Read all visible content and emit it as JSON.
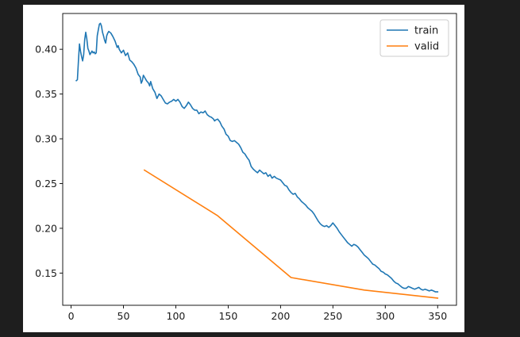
{
  "chart_data": {
    "type": "line",
    "title": "",
    "xlabel": "",
    "ylabel": "",
    "xlim": [
      -8,
      368
    ],
    "ylim": [
      0.114,
      0.44
    ],
    "xticks": [
      0,
      50,
      100,
      150,
      200,
      250,
      300,
      350
    ],
    "xtick_labels": [
      "0",
      "50",
      "100",
      "150",
      "200",
      "250",
      "300",
      "350"
    ],
    "yticks": [
      0.15,
      0.2,
      0.25,
      0.3,
      0.35,
      0.4
    ],
    "ytick_labels": [
      "0.15",
      "0.20",
      "0.25",
      "0.30",
      "0.35",
      "0.40"
    ],
    "grid": false,
    "legend_position": "top-right",
    "series": [
      {
        "name": "train",
        "color": "#1f77b4",
        "points": [
          [
            5,
            0.365
          ],
          [
            6,
            0.366
          ],
          [
            7,
            0.387
          ],
          [
            8,
            0.406
          ],
          [
            9,
            0.398
          ],
          [
            10,
            0.392
          ],
          [
            11,
            0.387
          ],
          [
            12,
            0.394
          ],
          [
            13,
            0.411
          ],
          [
            14,
            0.419
          ],
          [
            15,
            0.412
          ],
          [
            16,
            0.401
          ],
          [
            17,
            0.398
          ],
          [
            18,
            0.394
          ],
          [
            19,
            0.396
          ],
          [
            20,
            0.398
          ],
          [
            21,
            0.396
          ],
          [
            22,
            0.397
          ],
          [
            23,
            0.395
          ],
          [
            24,
            0.396
          ],
          [
            25,
            0.415
          ],
          [
            26,
            0.422
          ],
          [
            27,
            0.428
          ],
          [
            28,
            0.429
          ],
          [
            29,
            0.426
          ],
          [
            30,
            0.419
          ],
          [
            31,
            0.415
          ],
          [
            32,
            0.41
          ],
          [
            33,
            0.407
          ],
          [
            34,
            0.415
          ],
          [
            35,
            0.418
          ],
          [
            36,
            0.42
          ],
          [
            37,
            0.419
          ],
          [
            38,
            0.418
          ],
          [
            40,
            0.414
          ],
          [
            42,
            0.409
          ],
          [
            44,
            0.402
          ],
          [
            45,
            0.404
          ],
          [
            46,
            0.4
          ],
          [
            48,
            0.396
          ],
          [
            50,
            0.399
          ],
          [
            52,
            0.393
          ],
          [
            54,
            0.396
          ],
          [
            56,
            0.388
          ],
          [
            58,
            0.386
          ],
          [
            60,
            0.383
          ],
          [
            62,
            0.379
          ],
          [
            64,
            0.372
          ],
          [
            66,
            0.369
          ],
          [
            67,
            0.362
          ],
          [
            68,
            0.365
          ],
          [
            69,
            0.371
          ],
          [
            70,
            0.369
          ],
          [
            72,
            0.365
          ],
          [
            74,
            0.362
          ],
          [
            75,
            0.359
          ],
          [
            76,
            0.364
          ],
          [
            77,
            0.36
          ],
          [
            78,
            0.356
          ],
          [
            80,
            0.352
          ],
          [
            82,
            0.345
          ],
          [
            84,
            0.35
          ],
          [
            86,
            0.348
          ],
          [
            88,
            0.344
          ],
          [
            90,
            0.34
          ],
          [
            92,
            0.339
          ],
          [
            94,
            0.341
          ],
          [
            96,
            0.342
          ],
          [
            98,
            0.344
          ],
          [
            100,
            0.342
          ],
          [
            102,
            0.344
          ],
          [
            104,
            0.341
          ],
          [
            106,
            0.336
          ],
          [
            108,
            0.334
          ],
          [
            110,
            0.337
          ],
          [
            112,
            0.341
          ],
          [
            114,
            0.338
          ],
          [
            116,
            0.334
          ],
          [
            118,
            0.332
          ],
          [
            120,
            0.332
          ],
          [
            122,
            0.328
          ],
          [
            124,
            0.33
          ],
          [
            126,
            0.329
          ],
          [
            128,
            0.331
          ],
          [
            130,
            0.327
          ],
          [
            132,
            0.325
          ],
          [
            134,
            0.324
          ],
          [
            136,
            0.322
          ],
          [
            137,
            0.32
          ],
          [
            138,
            0.321
          ],
          [
            140,
            0.322
          ],
          [
            142,
            0.319
          ],
          [
            144,
            0.314
          ],
          [
            146,
            0.311
          ],
          [
            148,
            0.305
          ],
          [
            150,
            0.303
          ],
          [
            152,
            0.298
          ],
          [
            154,
            0.297
          ],
          [
            156,
            0.298
          ],
          [
            158,
            0.296
          ],
          [
            160,
            0.294
          ],
          [
            162,
            0.29
          ],
          [
            164,
            0.285
          ],
          [
            166,
            0.283
          ],
          [
            168,
            0.279
          ],
          [
            170,
            0.276
          ],
          [
            172,
            0.269
          ],
          [
            174,
            0.266
          ],
          [
            176,
            0.264
          ],
          [
            178,
            0.262
          ],
          [
            180,
            0.265
          ],
          [
            182,
            0.263
          ],
          [
            184,
            0.261
          ],
          [
            186,
            0.262
          ],
          [
            188,
            0.258
          ],
          [
            190,
            0.26
          ],
          [
            192,
            0.256
          ],
          [
            194,
            0.258
          ],
          [
            196,
            0.256
          ],
          [
            198,
            0.255
          ],
          [
            200,
            0.254
          ],
          [
            202,
            0.251
          ],
          [
            204,
            0.248
          ],
          [
            206,
            0.247
          ],
          [
            208,
            0.243
          ],
          [
            210,
            0.24
          ],
          [
            212,
            0.238
          ],
          [
            214,
            0.239
          ],
          [
            216,
            0.235
          ],
          [
            218,
            0.233
          ],
          [
            220,
            0.23
          ],
          [
            222,
            0.228
          ],
          [
            224,
            0.226
          ],
          [
            226,
            0.223
          ],
          [
            228,
            0.221
          ],
          [
            230,
            0.219
          ],
          [
            232,
            0.216
          ],
          [
            234,
            0.212
          ],
          [
            236,
            0.208
          ],
          [
            238,
            0.205
          ],
          [
            240,
            0.203
          ],
          [
            242,
            0.202
          ],
          [
            244,
            0.203
          ],
          [
            246,
            0.201
          ],
          [
            248,
            0.203
          ],
          [
            250,
            0.206
          ],
          [
            252,
            0.203
          ],
          [
            254,
            0.2
          ],
          [
            256,
            0.196
          ],
          [
            258,
            0.193
          ],
          [
            260,
            0.19
          ],
          [
            262,
            0.187
          ],
          [
            264,
            0.184
          ],
          [
            266,
            0.182
          ],
          [
            268,
            0.18
          ],
          [
            270,
            0.182
          ],
          [
            272,
            0.181
          ],
          [
            274,
            0.179
          ],
          [
            276,
            0.176
          ],
          [
            278,
            0.173
          ],
          [
            280,
            0.17
          ],
          [
            282,
            0.168
          ],
          [
            284,
            0.166
          ],
          [
            286,
            0.163
          ],
          [
            288,
            0.16
          ],
          [
            290,
            0.159
          ],
          [
            292,
            0.157
          ],
          [
            294,
            0.155
          ],
          [
            296,
            0.152
          ],
          [
            298,
            0.151
          ],
          [
            300,
            0.149
          ],
          [
            302,
            0.148
          ],
          [
            304,
            0.146
          ],
          [
            306,
            0.144
          ],
          [
            308,
            0.141
          ],
          [
            310,
            0.139
          ],
          [
            312,
            0.138
          ],
          [
            314,
            0.136
          ],
          [
            316,
            0.134
          ],
          [
            318,
            0.133
          ],
          [
            320,
            0.133
          ],
          [
            322,
            0.135
          ],
          [
            324,
            0.134
          ],
          [
            326,
            0.133
          ],
          [
            328,
            0.132
          ],
          [
            330,
            0.133
          ],
          [
            332,
            0.134
          ],
          [
            334,
            0.132
          ],
          [
            336,
            0.131
          ],
          [
            338,
            0.132
          ],
          [
            340,
            0.131
          ],
          [
            342,
            0.13
          ],
          [
            344,
            0.131
          ],
          [
            346,
            0.13
          ],
          [
            348,
            0.129
          ],
          [
            350,
            0.129
          ]
        ]
      },
      {
        "name": "valid",
        "color": "#ff7f0e",
        "points": [
          [
            70,
            0.265
          ],
          [
            140,
            0.214
          ],
          [
            210,
            0.145
          ],
          [
            280,
            0.131
          ],
          [
            350,
            0.122
          ]
        ]
      }
    ]
  }
}
